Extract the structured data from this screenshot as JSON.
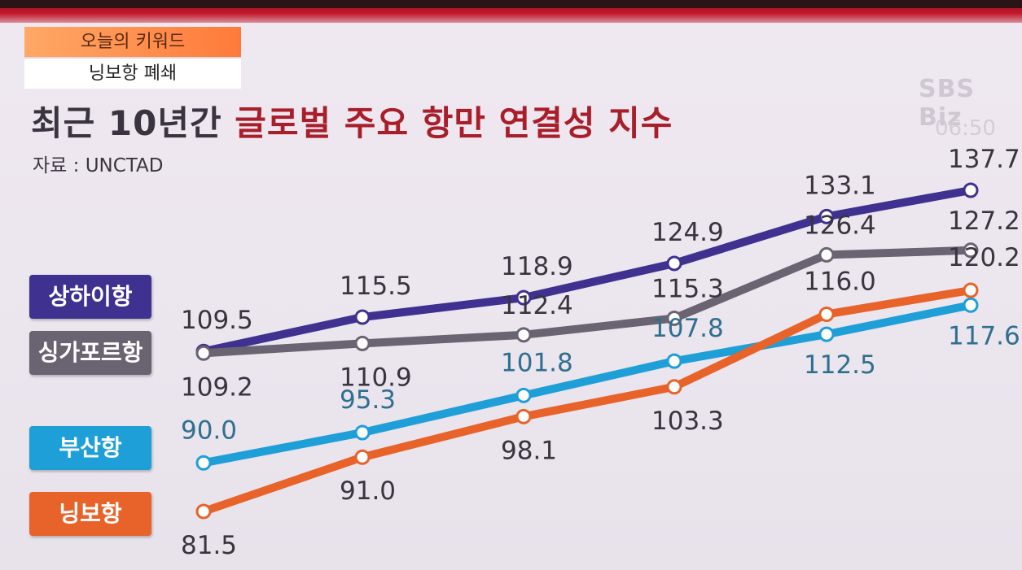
{
  "keyword_box": {
    "title": "오늘의 키워드",
    "keyword": "닝보항 폐쇄"
  },
  "headline": {
    "part1": "최근 10년간",
    "part2": "글로벌 주요 항만 연결성 지수"
  },
  "source": "자료 : UNCTAD",
  "broadcaster": "SBS Biz",
  "clock": "06:50",
  "chart_data": {
    "type": "line",
    "title": "최근 10년간 글로벌 주요 항만 연결성 지수",
    "points": 6,
    "series": [
      {
        "name": "상하이항",
        "color": "#3f318f",
        "values": [
          109.5,
          115.5,
          118.9,
          124.9,
          133.1,
          137.7
        ]
      },
      {
        "name": "싱가포르항",
        "color": "#6a6472",
        "values": [
          109.2,
          110.9,
          112.4,
          115.3,
          126.4,
          127.2
        ]
      },
      {
        "name": "부산항",
        "color": "#1e9fd8",
        "values": [
          90.0,
          95.3,
          101.8,
          107.8,
          112.5,
          117.6
        ]
      },
      {
        "name": "닝보항",
        "color": "#e8632a",
        "values": [
          81.5,
          91.0,
          98.1,
          103.3,
          116.0,
          120.2
        ]
      }
    ],
    "ylim": [
      81.5,
      137.7
    ]
  }
}
